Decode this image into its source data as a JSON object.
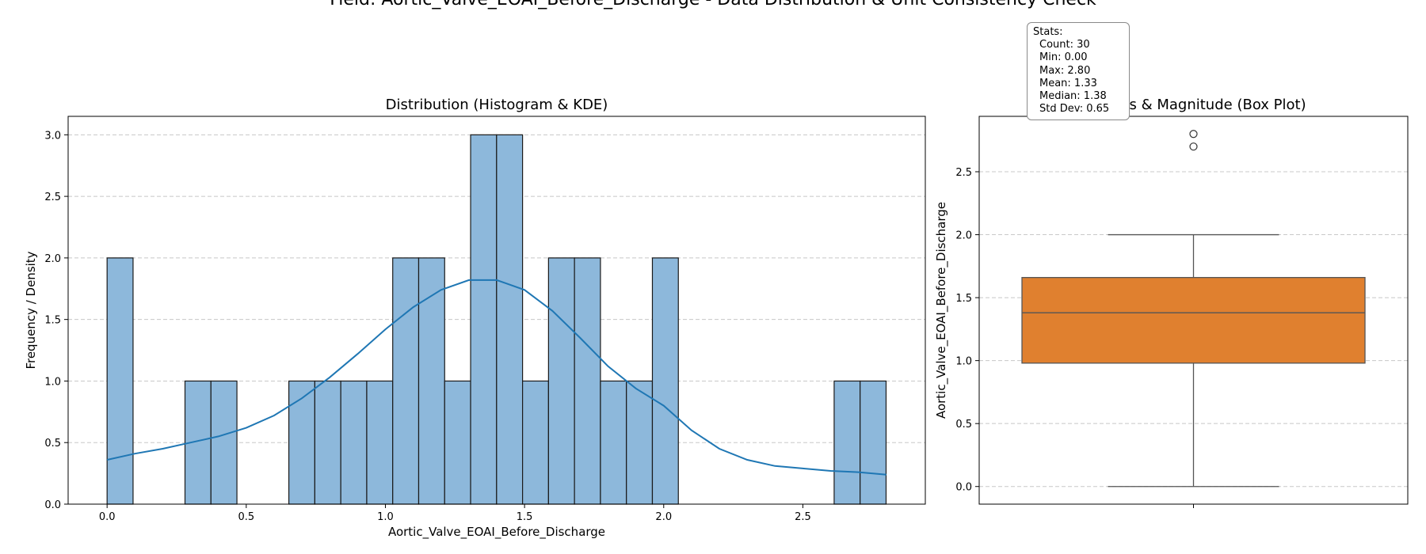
{
  "suptitle": "Field: Aortic_Valve_EOAI_Before_Discharge - Data Distribution & Unit Consistency Check",
  "colors": {
    "hist_fill": "#8db8db",
    "kde_line": "#1f77b4",
    "box_fill": "#e0802f",
    "grid": "#c8c8c8"
  },
  "stats": {
    "header": "Stats:",
    "lines": [
      "Count: 30",
      "Min: 0.00",
      "Max: 2.80",
      "Mean: 1.33",
      "Median: 1.38",
      "Std Dev: 0.65"
    ]
  },
  "chart_data": [
    {
      "type": "bar",
      "subtype": "histogram_with_kde",
      "title": "Distribution (Histogram & KDE)",
      "xlabel": "Aortic_Valve_EOAI_Before_Discharge",
      "ylabel": "Frequency / Density",
      "xlim": [
        -0.14,
        2.94
      ],
      "ylim": [
        0,
        3.15
      ],
      "xticks": [
        0.0,
        0.5,
        1.0,
        1.5,
        2.0,
        2.5
      ],
      "xtick_labels": [
        "0.0",
        "0.5",
        "1.0",
        "1.5",
        "2.0",
        "2.5"
      ],
      "yticks": [
        0.0,
        0.5,
        1.0,
        1.5,
        2.0,
        2.5,
        3.0
      ],
      "ytick_labels": [
        "0.0",
        "0.5",
        "1.0",
        "1.5",
        "2.0",
        "2.5",
        "3.0"
      ],
      "grid": "y-dashed",
      "bin_width": 0.0933,
      "bin_start": 0.0,
      "counts": [
        2,
        0,
        0,
        1,
        1,
        0,
        0,
        1,
        1,
        1,
        1,
        2,
        2,
        1,
        3,
        3,
        1,
        2,
        2,
        1,
        1,
        2,
        0,
        0,
        0,
        0,
        0,
        0,
        1,
        1
      ],
      "kde": {
        "x": [
          0.0,
          0.1,
          0.2,
          0.3,
          0.4,
          0.5,
          0.6,
          0.7,
          0.8,
          0.9,
          1.0,
          1.1,
          1.2,
          1.3,
          1.4,
          1.5,
          1.6,
          1.7,
          1.8,
          1.9,
          2.0,
          2.1,
          2.2,
          2.3,
          2.4,
          2.5,
          2.6,
          2.7,
          2.8
        ],
        "y": [
          0.36,
          0.41,
          0.45,
          0.5,
          0.55,
          0.62,
          0.72,
          0.86,
          1.03,
          1.22,
          1.42,
          1.6,
          1.74,
          1.82,
          1.82,
          1.74,
          1.57,
          1.35,
          1.12,
          0.94,
          0.8,
          0.6,
          0.45,
          0.36,
          0.31,
          0.29,
          0.27,
          0.26,
          0.24
        ]
      }
    },
    {
      "type": "box",
      "title": "Outliers & Magnitude (Box Plot)",
      "ylabel": "Aortic_Valve_EOAI_Before_Discharge",
      "ylim": [
        -0.14,
        2.94
      ],
      "yticks": [
        0.0,
        0.5,
        1.0,
        1.5,
        2.0,
        2.5
      ],
      "ytick_labels": [
        "0.0",
        "0.5",
        "1.0",
        "1.5",
        "2.0",
        "2.5"
      ],
      "grid": "y-dashed",
      "whisker_low": 0.0,
      "q1": 0.98,
      "median": 1.38,
      "q3": 1.66,
      "whisker_high": 2.0,
      "outliers": [
        2.7,
        2.8
      ]
    }
  ]
}
